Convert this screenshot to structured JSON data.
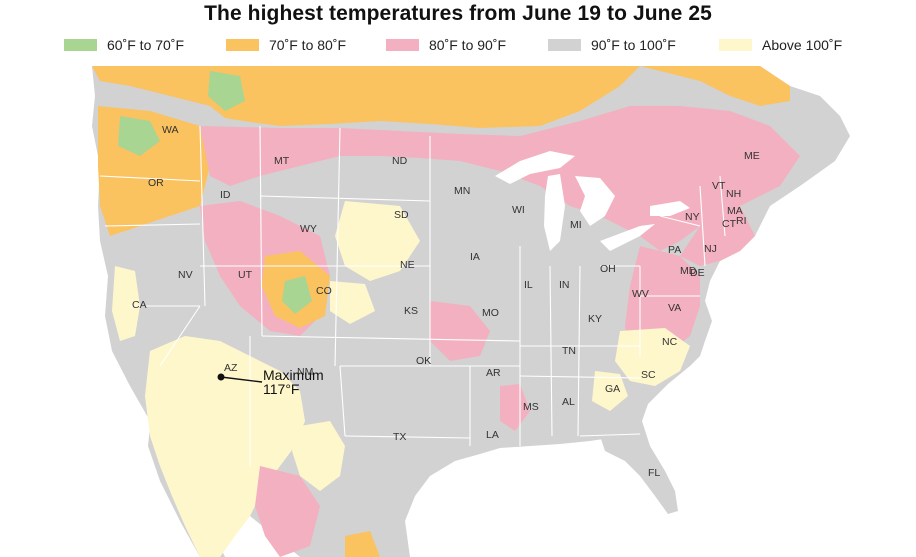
{
  "title": "The highest temperatures from June 19 to June 25",
  "legend": [
    {
      "label": "60˚F to 70˚F",
      "color": "#a8d592"
    },
    {
      "label": "70˚F to 80˚F",
      "color": "#fbc260"
    },
    {
      "label": "80˚F to 90˚F",
      "color": "#f3b0c0"
    },
    {
      "label": "90˚F to 100˚F",
      "color": "#d2d2d2"
    },
    {
      "label": "Above 100˚F",
      "color": "#fff7cc"
    }
  ],
  "colors": {
    "cool": "#a8d592",
    "mild": "#fbc260",
    "warm": "#f3b0c0",
    "hot": "#d2d2d2",
    "extreme": "#fff7cc",
    "water": "#ffffff",
    "border": "#ffffff"
  },
  "states": [
    "WA",
    "OR",
    "ID",
    "MT",
    "ND",
    "MN",
    "WI",
    "MI",
    "ME",
    "VT",
    "NH",
    "MA",
    "NY",
    "CT",
    "RI",
    "NJ",
    "PA",
    "DE",
    "MD",
    "VA",
    "WV",
    "OH",
    "IN",
    "IL",
    "IA",
    "SD",
    "NE",
    "WY",
    "NV",
    "CA",
    "UT",
    "CO",
    "KS",
    "MO",
    "KY",
    "TN",
    "NC",
    "SC",
    "GA",
    "AL",
    "MS",
    "AR",
    "OK",
    "TX",
    "LA",
    "FL",
    "AZ",
    "NM"
  ],
  "annotation": {
    "line1": "Maximum",
    "line2": "117°F"
  }
}
